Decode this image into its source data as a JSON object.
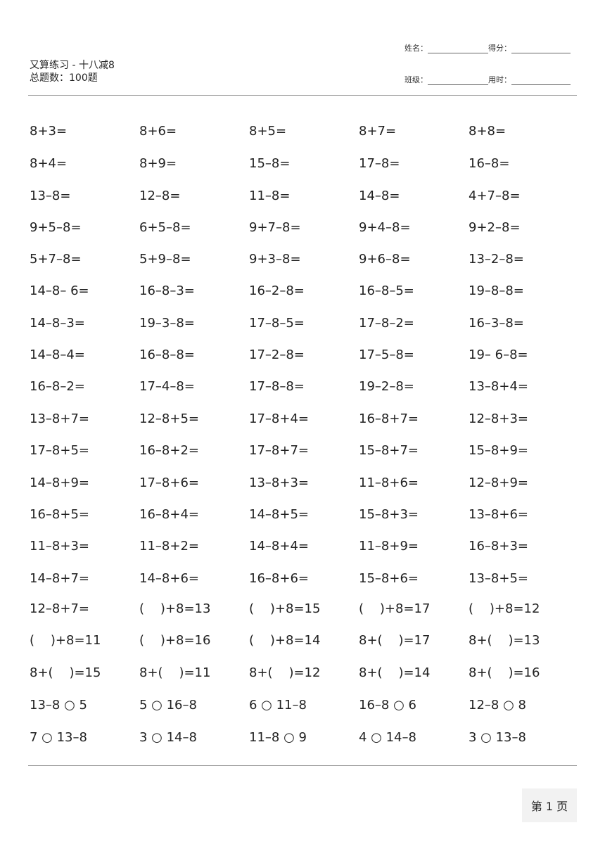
{
  "header": {
    "title": "又算练习 - 十八减8",
    "total": "总题数：100题",
    "name_label": "姓名：",
    "score_label": "得分：",
    "class_label": "班级：",
    "time_label": "用时："
  },
  "rows": [
    [
      "8+3=",
      "8+6=",
      "8+5=",
      "8+7=",
      "8+8="
    ],
    [
      "8+4=",
      "8+9=",
      "15–8=",
      "17–8=",
      "16–8="
    ],
    [
      "13–8=",
      "12–8=",
      "11–8=",
      "14–8=",
      "4+7–8="
    ],
    [
      "9+5–8=",
      "6+5–8=",
      "9+7–8=",
      "9+4–8=",
      "9+2–8="
    ],
    [
      "5+7–8=",
      "5+9–8=",
      "9+3–8=",
      "9+6–8=",
      "13–2–8="
    ],
    [
      "14–8– 6=",
      "16–8–3=",
      "16–2–8=",
      "16–8–5=",
      "19–8–8="
    ],
    [
      "14–8–3=",
      "19–3–8=",
      "17–8–5=",
      "17–8–2=",
      "16–3–8="
    ],
    [
      "14–8–4=",
      "16–8–8=",
      "17–2–8=",
      "17–5–8=",
      "19– 6–8="
    ],
    [
      "16–8–2=",
      "17–4–8=",
      "17–8–8=",
      "19–2–8=",
      "13–8+4="
    ],
    [
      "13–8+7=",
      "12–8+5=",
      "17–8+4=",
      "16–8+7=",
      "12–8+3="
    ],
    [
      "17–8+5=",
      "16–8+2=",
      "17–8+7=",
      "15–8+7=",
      "15–8+9="
    ],
    [
      "14–8+9=",
      "17–8+6=",
      "13–8+3=",
      "11–8+6=",
      "12–8+9="
    ],
    [
      "16–8+5=",
      "16–8+4=",
      "14–8+5=",
      "15–8+3=",
      "13–8+6="
    ],
    [
      "11–8+3=",
      "11–8+2=",
      "14–8+4=",
      "11–8+9=",
      "16–8+3="
    ],
    [
      "14–8+7=",
      "14–8+6=",
      "16–8+6=",
      "15–8+6=",
      "13–8+5="
    ],
    [
      "12–8+7=",
      "(    )+8=13",
      "(    )+8=15",
      "(    )+8=17",
      "(    )+8=12"
    ],
    [
      "(    )+8=11",
      "(    )+8=16",
      "(    )+8=14",
      "8+(    )=17",
      "8+(    )=13"
    ],
    [
      "8+(    )=15",
      "8+(    )=11",
      "8+(    )=12",
      "8+(    )=14",
      "8+(    )=16"
    ],
    [
      "13–8 ○ 5",
      "5 ○ 16–8",
      "6 ○ 11–8",
      "16–8 ○ 6",
      "12–8 ○ 8"
    ],
    [
      "7 ○ 13–8",
      "3 ○ 14–8",
      "11–8 ○ 9",
      "4 ○ 14–8",
      "3 ○ 13–8"
    ]
  ],
  "footer": {
    "page": "第 1 页"
  }
}
